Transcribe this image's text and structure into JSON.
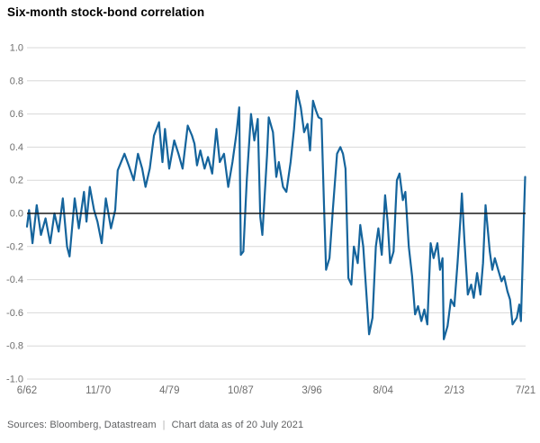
{
  "title": "Six-month stock-bond correlation",
  "footer": {
    "sources": "Sources: Bloomberg, Datastream",
    "separator": "|",
    "note": "Chart data as of 20 July 2021"
  },
  "colors": {
    "line": "#15649c",
    "grid": "#d8d8d8",
    "zero_line": "#1a1a1a",
    "tick_text": "#6e6e6e",
    "title_text": "#000000",
    "footer_text": "#5f6062"
  },
  "chart_data": {
    "type": "line",
    "title": "Six-month stock-bond correlation",
    "xlabel": "",
    "ylabel": "",
    "xlim": [
      1962.45,
      2021.55
    ],
    "ylim": [
      -1.0,
      1.0
    ],
    "grid": "horizontal",
    "legend": "none",
    "yticks": [
      1.0,
      0.8,
      0.6,
      0.4,
      0.2,
      0.0,
      -0.2,
      -0.4,
      -0.6,
      -0.8,
      -1.0
    ],
    "ytick_labels": [
      "1.0",
      "0.8",
      "0.6",
      "0.4",
      "0.2",
      "0.0",
      "-0.2",
      "-0.4",
      "-0.6",
      "-0.8",
      "-1.0"
    ],
    "xtick_labels": [
      "6/62",
      "11/70",
      "4/79",
      "10/87",
      "3/96",
      "8/04",
      "2/13",
      "7/21"
    ],
    "series": [
      {
        "name": "Six-month stock-bond correlation",
        "x_unit": "decimal_year",
        "points": [
          [
            1962.45,
            -0.08
          ],
          [
            1962.7,
            0.02
          ],
          [
            1963.1,
            -0.18
          ],
          [
            1963.6,
            0.05
          ],
          [
            1964.1,
            -0.13
          ],
          [
            1964.65,
            -0.03
          ],
          [
            1965.2,
            -0.18
          ],
          [
            1965.7,
            0.0
          ],
          [
            1966.2,
            -0.11
          ],
          [
            1966.7,
            0.09
          ],
          [
            1967.2,
            -0.2
          ],
          [
            1967.5,
            -0.26
          ],
          [
            1968.1,
            0.09
          ],
          [
            1968.6,
            -0.09
          ],
          [
            1969.2,
            0.13
          ],
          [
            1969.5,
            -0.05
          ],
          [
            1969.9,
            0.16
          ],
          [
            1970.4,
            0.02
          ],
          [
            1970.8,
            -0.05
          ],
          [
            1971.3,
            -0.18
          ],
          [
            1971.8,
            0.09
          ],
          [
            1972.4,
            -0.09
          ],
          [
            1972.9,
            0.02
          ],
          [
            1973.2,
            0.26
          ],
          [
            1974.0,
            0.36
          ],
          [
            1974.5,
            0.29
          ],
          [
            1975.1,
            0.2
          ],
          [
            1975.6,
            0.36
          ],
          [
            1976.1,
            0.27
          ],
          [
            1976.5,
            0.16
          ],
          [
            1977.0,
            0.27
          ],
          [
            1977.5,
            0.47
          ],
          [
            1978.1,
            0.55
          ],
          [
            1978.5,
            0.31
          ],
          [
            1978.8,
            0.51
          ],
          [
            1979.3,
            0.27
          ],
          [
            1979.9,
            0.44
          ],
          [
            1980.4,
            0.36
          ],
          [
            1980.9,
            0.27
          ],
          [
            1981.5,
            0.53
          ],
          [
            1982.0,
            0.47
          ],
          [
            1982.3,
            0.42
          ],
          [
            1982.6,
            0.29
          ],
          [
            1983.0,
            0.38
          ],
          [
            1983.5,
            0.27
          ],
          [
            1983.9,
            0.34
          ],
          [
            1984.4,
            0.24
          ],
          [
            1984.9,
            0.51
          ],
          [
            1985.3,
            0.31
          ],
          [
            1985.8,
            0.36
          ],
          [
            1986.3,
            0.16
          ],
          [
            1986.8,
            0.31
          ],
          [
            1987.3,
            0.49
          ],
          [
            1987.6,
            0.64
          ],
          [
            1987.8,
            -0.25
          ],
          [
            1988.1,
            -0.23
          ],
          [
            1988.5,
            0.2
          ],
          [
            1989.0,
            0.6
          ],
          [
            1989.4,
            0.44
          ],
          [
            1989.8,
            0.57
          ],
          [
            1990.1,
            -0.02
          ],
          [
            1990.35,
            -0.13
          ],
          [
            1990.9,
            0.35
          ],
          [
            1991.1,
            0.58
          ],
          [
            1991.6,
            0.49
          ],
          [
            1992.0,
            0.22
          ],
          [
            1992.3,
            0.31
          ],
          [
            1992.8,
            0.16
          ],
          [
            1993.2,
            0.13
          ],
          [
            1993.7,
            0.31
          ],
          [
            1994.1,
            0.51
          ],
          [
            1994.45,
            0.74
          ],
          [
            1994.9,
            0.64
          ],
          [
            1995.3,
            0.49
          ],
          [
            1995.7,
            0.54
          ],
          [
            1996.0,
            0.38
          ],
          [
            1996.35,
            0.68
          ],
          [
            1996.7,
            0.62
          ],
          [
            1997.0,
            0.58
          ],
          [
            1997.35,
            0.57
          ],
          [
            1997.65,
            0.05
          ],
          [
            1997.9,
            -0.34
          ],
          [
            1998.3,
            -0.27
          ],
          [
            1998.7,
            0.02
          ],
          [
            1999.2,
            0.36
          ],
          [
            1999.6,
            0.4
          ],
          [
            1999.9,
            0.36
          ],
          [
            2000.2,
            0.27
          ],
          [
            2000.55,
            -0.39
          ],
          [
            2000.9,
            -0.43
          ],
          [
            2001.2,
            -0.2
          ],
          [
            2001.65,
            -0.3
          ],
          [
            2001.95,
            -0.07
          ],
          [
            2002.3,
            -0.2
          ],
          [
            2002.7,
            -0.5
          ],
          [
            2003.0,
            -0.73
          ],
          [
            2003.4,
            -0.63
          ],
          [
            2003.8,
            -0.2
          ],
          [
            2004.1,
            -0.09
          ],
          [
            2004.5,
            -0.25
          ],
          [
            2004.9,
            0.11
          ],
          [
            2005.2,
            -0.05
          ],
          [
            2005.5,
            -0.3
          ],
          [
            2005.9,
            -0.23
          ],
          [
            2006.3,
            0.2
          ],
          [
            2006.6,
            0.24
          ],
          [
            2007.0,
            0.08
          ],
          [
            2007.3,
            0.13
          ],
          [
            2007.7,
            -0.2
          ],
          [
            2008.1,
            -0.38
          ],
          [
            2008.45,
            -0.61
          ],
          [
            2008.8,
            -0.56
          ],
          [
            2009.2,
            -0.65
          ],
          [
            2009.55,
            -0.58
          ],
          [
            2009.9,
            -0.67
          ],
          [
            2010.3,
            -0.18
          ],
          [
            2010.65,
            -0.27
          ],
          [
            2011.1,
            -0.18
          ],
          [
            2011.4,
            -0.34
          ],
          [
            2011.7,
            -0.27
          ],
          [
            2011.85,
            -0.76
          ],
          [
            2012.3,
            -0.68
          ],
          [
            2012.7,
            -0.52
          ],
          [
            2013.1,
            -0.56
          ],
          [
            2013.5,
            -0.29
          ],
          [
            2013.8,
            -0.05
          ],
          [
            2014.0,
            0.12
          ],
          [
            2014.3,
            -0.16
          ],
          [
            2014.7,
            -0.49
          ],
          [
            2015.1,
            -0.43
          ],
          [
            2015.4,
            -0.51
          ],
          [
            2015.8,
            -0.36
          ],
          [
            2016.2,
            -0.49
          ],
          [
            2016.5,
            -0.3
          ],
          [
            2016.8,
            0.05
          ],
          [
            2017.3,
            -0.23
          ],
          [
            2017.6,
            -0.34
          ],
          [
            2017.9,
            -0.27
          ],
          [
            2018.3,
            -0.34
          ],
          [
            2018.7,
            -0.41
          ],
          [
            2019.0,
            -0.38
          ],
          [
            2019.4,
            -0.47
          ],
          [
            2019.7,
            -0.52
          ],
          [
            2020.0,
            -0.67
          ],
          [
            2020.5,
            -0.63
          ],
          [
            2020.8,
            -0.55
          ],
          [
            2021.0,
            -0.65
          ],
          [
            2021.2,
            -0.3
          ],
          [
            2021.35,
            -0.02
          ],
          [
            2021.5,
            0.22
          ]
        ]
      }
    ]
  }
}
